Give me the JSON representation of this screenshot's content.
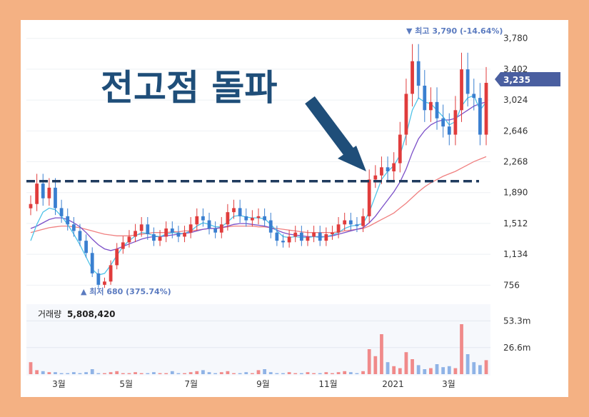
{
  "annotation": {
    "headline": "전고점 돌파",
    "headline_color": "#1f4e79",
    "high_label": "▼ 최고 3,790 (-14.64%)",
    "low_label": "▲ 최저 680 (375.74%)"
  },
  "price_tag": "3,235",
  "volume_label": {
    "caption": "거래량",
    "value": "5,808,420"
  },
  "chart_data": {
    "type": "candlestick",
    "y_ticks": [
      "3,780",
      "3,402",
      "3,024",
      "2,646",
      "2,268",
      "1,890",
      "1,512",
      "1,134",
      "756"
    ],
    "y_tick_values": [
      3780,
      3402,
      3024,
      2646,
      2268,
      1890,
      1512,
      1134,
      756
    ],
    "ylim": [
      680,
      3900
    ],
    "x_ticks": [
      "3월",
      "5월",
      "7월",
      "9월",
      "11월",
      "2021",
      "3월"
    ],
    "volume_ticks": [
      "53.3m",
      "26.6m"
    ],
    "volume_tick_values": [
      53.3,
      26.6
    ],
    "prior_high_level": 2030,
    "close_price": 3235,
    "series_close": [
      1750,
      2000,
      1820,
      1950,
      1700,
      1600,
      1500,
      1420,
      1300,
      1150,
      900,
      760,
      800,
      1000,
      1200,
      1280,
      1350,
      1420,
      1500,
      1380,
      1300,
      1350,
      1450,
      1400,
      1350,
      1400,
      1500,
      1600,
      1550,
      1450,
      1400,
      1500,
      1650,
      1700,
      1600,
      1550,
      1580,
      1600,
      1550,
      1400,
      1300,
      1280,
      1350,
      1400,
      1300,
      1350,
      1400,
      1300,
      1380,
      1400,
      1500,
      1550,
      1500,
      1480,
      1600,
      2050,
      2100,
      2200,
      2150,
      2250,
      2600,
      3100,
      3500,
      3200,
      2900,
      3000,
      2800,
      2700,
      2600,
      2900,
      3400,
      3100,
      3050,
      2600,
      3235
    ],
    "ma_fast": [
      1300,
      1500,
      1650,
      1700,
      1680,
      1600,
      1500,
      1380,
      1250,
      1100,
      950,
      880,
      900,
      1000,
      1120,
      1230,
      1300,
      1360,
      1400,
      1390,
      1360,
      1350,
      1380,
      1400,
      1390,
      1390,
      1420,
      1480,
      1520,
      1500,
      1470,
      1470,
      1530,
      1600,
      1610,
      1590,
      1580,
      1580,
      1570,
      1500,
      1420,
      1350,
      1340,
      1350,
      1340,
      1340,
      1350,
      1340,
      1350,
      1370,
      1400,
      1450,
      1480,
      1490,
      1510,
      1650,
      1850,
      2050,
      2150,
      2220,
      2350,
      2600,
      2900,
      3050,
      3000,
      2980,
      2900,
      2820,
      2720,
      2760,
      2950,
      3050,
      3080,
      2900,
      3000
    ],
    "ma_mid": [
      1450,
      1480,
      1520,
      1560,
      1580,
      1580,
      1560,
      1520,
      1470,
      1400,
      1320,
      1250,
      1200,
      1180,
      1200,
      1230,
      1260,
      1290,
      1320,
      1340,
      1350,
      1350,
      1360,
      1370,
      1380,
      1390,
      1400,
      1420,
      1440,
      1450,
      1450,
      1460,
      1480,
      1500,
      1510,
      1510,
      1500,
      1490,
      1480,
      1460,
      1430,
      1400,
      1380,
      1370,
      1360,
      1350,
      1350,
      1350,
      1350,
      1360,
      1380,
      1400,
      1420,
      1440,
      1460,
      1520,
      1600,
      1700,
      1800,
      1900,
      2020,
      2180,
      2380,
      2550,
      2650,
      2720,
      2760,
      2780,
      2780,
      2800,
      2850,
      2900,
      2950,
      2980,
      3000
    ],
    "ma_slow": [
      1400,
      1420,
      1440,
      1460,
      1470,
      1480,
      1480,
      1470,
      1460,
      1440,
      1420,
      1400,
      1380,
      1370,
      1360,
      1360,
      1360,
      1370,
      1380,
      1390,
      1400,
      1400,
      1400,
      1410,
      1410,
      1420,
      1420,
      1430,
      1440,
      1450,
      1450,
      1460,
      1470,
      1480,
      1480,
      1480,
      1480,
      1470,
      1470,
      1460,
      1450,
      1440,
      1430,
      1420,
      1410,
      1400,
      1400,
      1400,
      1400,
      1400,
      1410,
      1420,
      1430,
      1440,
      1450,
      1480,
      1520,
      1560,
      1600,
      1640,
      1700,
      1760,
      1830,
      1900,
      1960,
      2010,
      2050,
      2090,
      2120,
      2150,
      2190,
      2230,
      2270,
      2300,
      2330
    ],
    "volume": [
      12,
      4,
      3,
      2,
      2,
      1,
      1,
      2,
      1,
      2,
      5,
      1,
      1,
      2,
      3,
      1,
      1,
      2,
      1,
      1,
      2,
      1,
      1,
      3,
      1,
      1,
      2,
      3,
      4,
      2,
      1,
      2,
      3,
      1,
      1,
      2,
      1,
      4,
      5,
      2,
      1,
      1,
      2,
      1,
      1,
      2,
      1,
      1,
      2,
      1,
      2,
      3,
      2,
      1,
      3,
      25,
      18,
      40,
      12,
      8,
      6,
      22,
      15,
      9,
      5,
      6,
      10,
      7,
      8,
      6,
      50,
      20,
      12,
      9,
      14
    ],
    "colors": {
      "up": "#e03c3c",
      "down": "#3a7fd0",
      "ma_fast": "#4fc3e8",
      "ma_mid": "#7b4fc8",
      "ma_slow": "#f08080",
      "dash": "#1f3b5e",
      "arrow": "#1f4e79",
      "price_tag": "#4a5fa0"
    }
  }
}
